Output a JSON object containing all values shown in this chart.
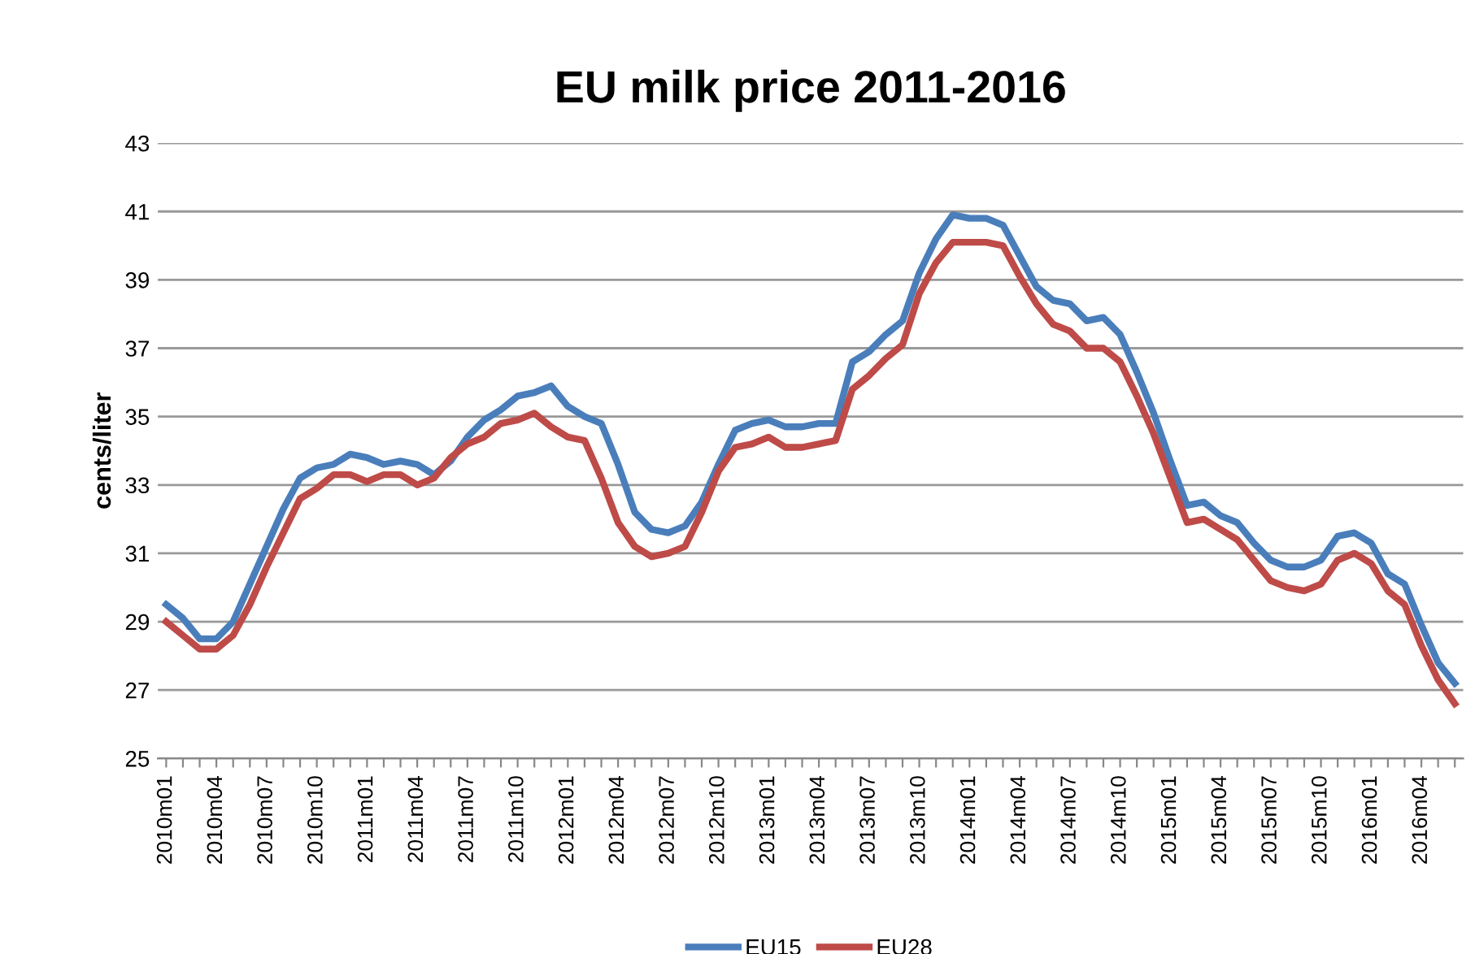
{
  "chart_data": {
    "type": "line",
    "title": "EU milk price 2011-2016",
    "ylabel": "cents/liter",
    "categories": [
      "2010m01",
      null,
      null,
      "2010m04",
      null,
      null,
      "2010m07",
      null,
      null,
      "2010m10",
      null,
      null,
      "2011m01",
      null,
      null,
      "2011m04",
      null,
      null,
      "2011m07",
      null,
      null,
      "2011m10",
      null,
      null,
      "2012m01",
      null,
      null,
      "2012m04",
      null,
      null,
      "2012m07",
      null,
      null,
      "2012m10",
      null,
      null,
      "2013m01",
      null,
      null,
      "2013m04",
      null,
      null,
      "2013m07",
      null,
      null,
      "2013m10",
      null,
      null,
      "2014m01",
      null,
      null,
      "2014m04",
      null,
      null,
      "2014m07",
      null,
      null,
      "2014m10",
      null,
      null,
      "2015m01",
      null,
      null,
      "2015m04",
      null,
      null,
      "2015m07",
      null,
      null,
      "2015m10",
      null,
      null,
      "2016m01",
      null,
      null,
      "2016m04",
      null,
      null
    ],
    "series": [
      {
        "name": "EU15",
        "color": "#4a7ebb",
        "values": [
          29.5,
          29.1,
          28.5,
          28.5,
          29.0,
          30.1,
          31.2,
          32.3,
          33.2,
          33.5,
          33.6,
          33.9,
          33.8,
          33.6,
          33.7,
          33.6,
          33.3,
          33.7,
          34.4,
          34.9,
          35.2,
          35.6,
          35.7,
          35.9,
          35.3,
          35.0,
          34.8,
          33.6,
          32.2,
          31.7,
          31.6,
          31.8,
          32.5,
          33.6,
          34.6,
          34.8,
          34.9,
          34.7,
          34.7,
          34.8,
          34.8,
          36.6,
          36.9,
          37.4,
          37.8,
          39.2,
          40.2,
          40.9,
          40.8,
          40.8,
          40.6,
          39.7,
          38.8,
          38.4,
          38.3,
          37.8,
          37.9,
          37.4,
          36.3,
          35.1,
          33.7,
          32.4,
          32.5,
          32.1,
          31.9,
          31.3,
          30.8,
          30.6,
          30.6,
          30.8,
          31.5,
          31.6,
          31.3,
          30.4,
          30.1,
          28.9,
          27.8,
          27.2
        ]
      },
      {
        "name": "EU28",
        "color": "#be4b48",
        "values": [
          29.0,
          28.6,
          28.2,
          28.2,
          28.6,
          29.5,
          30.6,
          31.6,
          32.6,
          32.9,
          33.3,
          33.3,
          33.1,
          33.3,
          33.3,
          33.0,
          33.2,
          33.8,
          34.2,
          34.4,
          34.8,
          34.9,
          35.1,
          34.7,
          34.4,
          34.3,
          33.2,
          31.9,
          31.2,
          30.9,
          31.0,
          31.2,
          32.2,
          33.4,
          34.1,
          34.2,
          34.4,
          34.1,
          34.1,
          34.2,
          34.3,
          35.8,
          36.2,
          36.7,
          37.1,
          38.6,
          39.5,
          40.1,
          40.1,
          40.1,
          40.0,
          39.1,
          38.3,
          37.7,
          37.5,
          37.0,
          37.0,
          36.6,
          35.6,
          34.5,
          33.2,
          31.9,
          32.0,
          31.7,
          31.4,
          30.8,
          30.2,
          30.0,
          29.9,
          30.1,
          30.8,
          31.0,
          30.7,
          29.9,
          29.5,
          28.3,
          27.3,
          26.6
        ]
      }
    ],
    "ylim": [
      25,
      43
    ],
    "yticks": [
      25,
      27,
      29,
      31,
      33,
      35,
      37,
      39,
      41,
      43
    ],
    "grid": "y",
    "legend": "bottom",
    "marker": "none",
    "line_style": "solid"
  }
}
